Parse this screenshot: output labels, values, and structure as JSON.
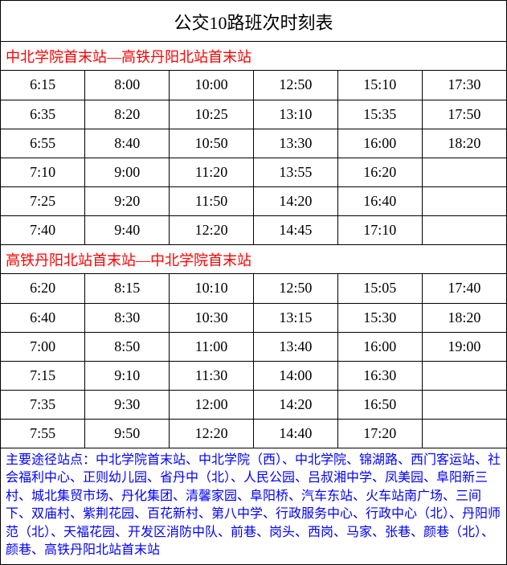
{
  "title": "公交10路班次时刻表",
  "colors": {
    "section_header": "#ff0000",
    "footer_text": "#0000ff",
    "border": "#000000",
    "background": "#ffffff",
    "cell_text": "#000000"
  },
  "typography": {
    "title_fontsize": 22,
    "section_fontsize": 18,
    "cell_fontsize": 18,
    "footer_fontsize": 16,
    "title_font": "SimSun",
    "cell_font": "Times New Roman"
  },
  "sections": [
    {
      "header": "中北学院首末站—高铁丹阳北站首末站",
      "type": "table",
      "columns": 6,
      "rows": [
        [
          "6:15",
          "8:00",
          "10:00",
          "12:50",
          "15:10",
          "17:30"
        ],
        [
          "6:35",
          "8:20",
          "10:25",
          "13:10",
          "15:35",
          "17:50"
        ],
        [
          "6:55",
          "8:40",
          "10:50",
          "13:30",
          "16:00",
          "18:20"
        ],
        [
          "7:10",
          "9:00",
          "11:20",
          "13:55",
          "16:20",
          ""
        ],
        [
          "7:25",
          "9:20",
          "11:50",
          "14:20",
          "16:40",
          ""
        ],
        [
          "7:40",
          "9:40",
          "12:20",
          "14:45",
          "17:10",
          ""
        ]
      ]
    },
    {
      "header": "高铁丹阳北站首末站—中北学院首末站",
      "type": "table",
      "columns": 6,
      "rows": [
        [
          "6:20",
          "8:15",
          "10:10",
          "12:50",
          "15:05",
          "17:40"
        ],
        [
          "6:40",
          "8:30",
          "10:30",
          "13:15",
          "15:30",
          "18:20"
        ],
        [
          "7:00",
          "8:50",
          "11:00",
          "13:40",
          "16:00",
          "19:00"
        ],
        [
          "7:15",
          "9:10",
          "11:30",
          "14:00",
          "16:30",
          ""
        ],
        [
          "7:35",
          "9:30",
          "12:00",
          "14:20",
          "16:50",
          ""
        ],
        [
          "7:55",
          "9:50",
          "12:20",
          "14:40",
          "17:20",
          ""
        ]
      ]
    }
  ],
  "footer": "主要途径站点：中北学院首末站、中北学院（西）、中北学院、锦湖路、西门客运站、社会福利中心、正则幼儿园、省丹中（北）、人民公园、吕叔湘中学、凤美园、阜阳新三村、城北集贸市场、丹化集团、清馨家园、阜阳桥、汽车东站、火车站南广场、三间下、双庙村、紫荆花园、百花新村、第八中学、行政服务中心、行政中心（北）、丹阳师范（北）、天福花园、开发区消防中队、前巷、岗头、西岗、马家、张巷、颜巷（北）、颜巷、高铁丹阳北站首末站"
}
